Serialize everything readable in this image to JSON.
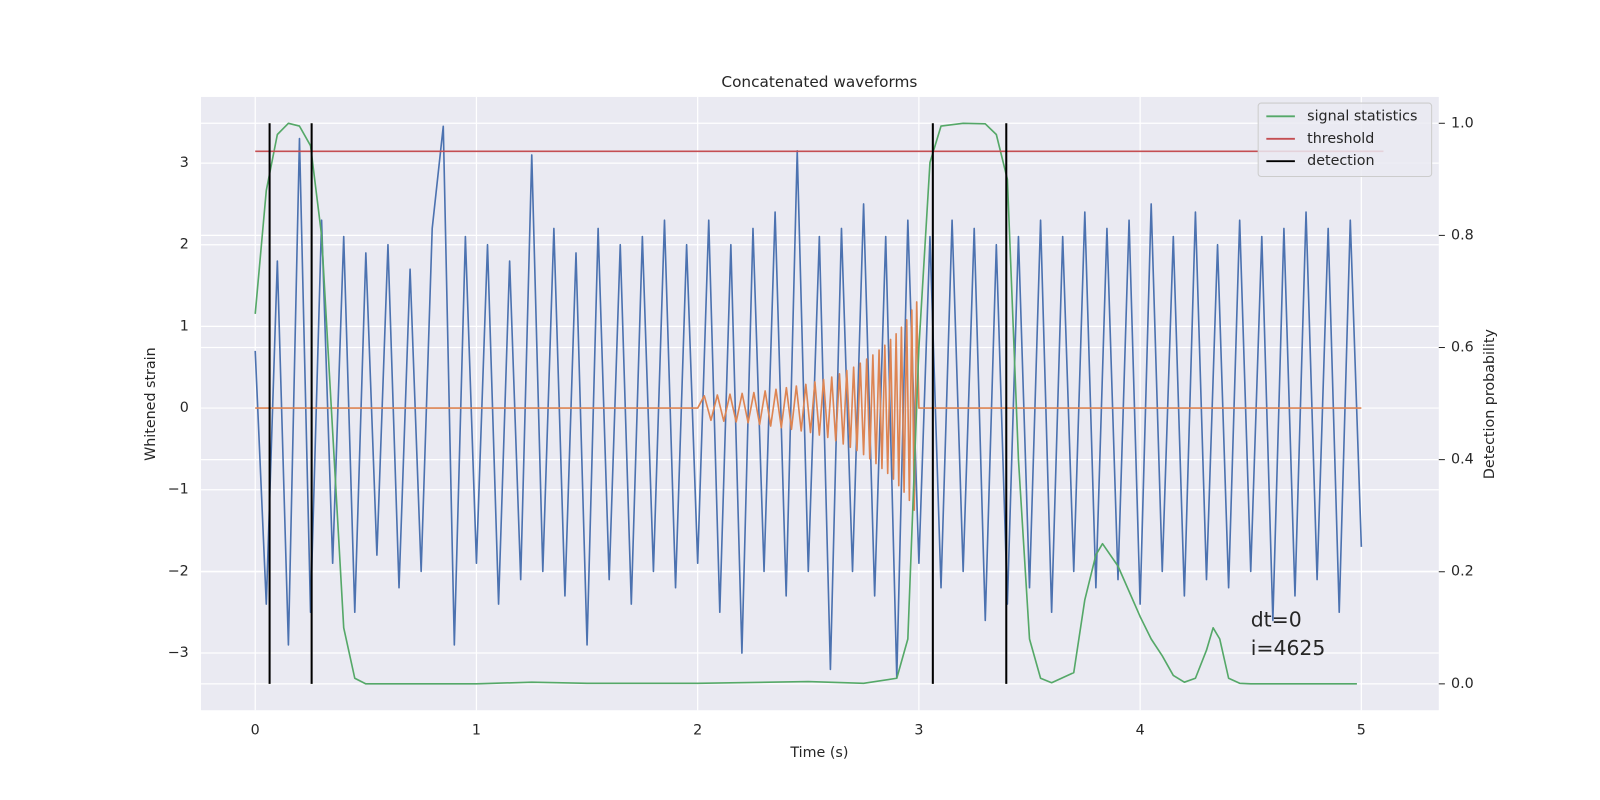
{
  "chart_data": {
    "type": "line",
    "title": "Concatenated waveforms",
    "xlabel": "Time (s)",
    "ylabel": "Whitened strain",
    "y2label": "Detection probability",
    "xlim": [
      -0.245,
      5.35
    ],
    "ylim": [
      -3.7,
      3.81
    ],
    "y2lim": [
      -0.047,
      1.047
    ],
    "xticks": [
      0,
      1,
      2,
      3,
      4,
      5
    ],
    "yticks": [
      {
        "value": -3,
        "label": "−3"
      },
      {
        "value": -2,
        "label": "−2"
      },
      {
        "value": -1,
        "label": "−1"
      },
      0,
      1,
      2,
      3
    ],
    "y2ticks": [
      {
        "value": 0,
        "label": "0.0"
      },
      0.2,
      0.4,
      0.6,
      0.8,
      {
        "value": 1,
        "label": "1.0"
      }
    ],
    "grid": true,
    "legend": "upper right",
    "series": [
      {
        "color": "#4c72b0",
        "x": [
          0,
          0.05,
          0.1,
          0.15,
          0.2,
          0.25,
          0.3,
          0.35,
          0.4,
          0.45,
          0.5,
          0.55,
          0.6,
          0.65,
          0.7,
          0.75,
          0.8,
          0.85,
          0.9,
          0.95,
          1,
          1.05,
          1.1,
          1.15,
          1.2,
          1.25,
          1.3,
          1.35,
          1.4,
          1.45,
          1.5,
          1.55,
          1.6,
          1.65,
          1.7,
          1.75,
          1.8,
          1.85,
          1.9,
          1.95,
          2,
          2.05,
          2.1,
          2.15,
          2.2,
          2.25,
          2.3,
          2.35,
          2.4,
          2.45,
          2.5,
          2.55,
          2.6,
          2.65,
          2.7,
          2.75,
          2.8,
          2.85,
          2.9,
          2.95,
          3,
          3.05,
          3.1,
          3.15,
          3.2,
          3.25,
          3.3,
          3.35,
          3.4,
          3.45,
          3.5,
          3.55,
          3.6,
          3.65,
          3.7,
          3.75,
          3.8,
          3.85,
          3.9,
          3.95,
          4,
          4.05,
          4.1,
          4.15,
          4.2,
          4.25,
          4.3,
          4.35,
          4.4,
          4.45,
          4.5,
          4.55,
          4.6,
          4.65,
          4.7,
          4.75,
          4.8,
          4.85,
          4.9,
          4.95,
          5
        ],
        "values": [
          0.7,
          -2.4,
          1.8,
          -2.9,
          3.3,
          -2.5,
          2.3,
          -1.9,
          2.1,
          -2.5,
          1.9,
          -1.8,
          2.0,
          -2.2,
          1.7,
          -2.0,
          2.2,
          3.45,
          -2.9,
          2.1,
          -1.9,
          2.0,
          -2.4,
          1.8,
          -2.1,
          3.1,
          -2.0,
          2.2,
          -2.3,
          1.9,
          -2.9,
          2.2,
          -2.1,
          2.0,
          -2.4,
          2.1,
          -2.0,
          2.3,
          -2.2,
          2.0,
          -1.9,
          2.3,
          -2.5,
          2.0,
          -3.0,
          2.2,
          -2.0,
          2.4,
          -2.3,
          3.15,
          -2.0,
          2.1,
          -3.2,
          2.2,
          -2.0,
          2.5,
          -2.3,
          2.1,
          -3.3,
          2.3,
          -1.9,
          2.1,
          -2.2,
          2.3,
          -2.0,
          2.2,
          -2.6,
          2.0,
          -2.4,
          2.1,
          -2.2,
          2.3,
          -2.5,
          2.1,
          -2.0,
          2.4,
          -2.2,
          2.2,
          -2.1,
          2.3,
          -2.4,
          2.5,
          -2.0,
          2.1,
          -2.3,
          2.4,
          -2.1,
          2.0,
          -2.2,
          2.3,
          -2.0,
          2.1,
          -2.6,
          2.2,
          -2.3,
          2.4,
          -2.1,
          2.2,
          -2.5,
          2.3,
          -1.7
        ]
      },
      {
        "color": "#dd8452",
        "x": [
          0,
          2.0,
          2.03,
          2.06,
          2.089,
          2.118,
          2.146,
          2.174,
          2.201,
          2.228,
          2.254,
          2.28,
          2.305,
          2.33,
          2.354,
          2.378,
          2.401,
          2.424,
          2.446,
          2.468,
          2.489,
          2.51,
          2.53,
          2.55,
          2.569,
          2.588,
          2.606,
          2.624,
          2.641,
          2.658,
          2.674,
          2.69,
          2.705,
          2.72,
          2.735,
          2.75,
          2.764,
          2.778,
          2.792,
          2.806,
          2.82,
          2.833,
          2.846,
          2.859,
          2.872,
          2.885,
          2.897,
          2.909,
          2.921,
          2.933,
          2.945,
          2.957,
          2.968,
          2.979,
          2.99,
          3.0,
          5
        ],
        "values": [
          0,
          0,
          0.15,
          -0.15,
          0.16,
          -0.16,
          0.17,
          -0.17,
          0.18,
          -0.18,
          0.19,
          -0.2,
          0.21,
          -0.22,
          0.23,
          -0.24,
          0.25,
          -0.26,
          0.27,
          -0.28,
          0.29,
          -0.3,
          0.32,
          -0.33,
          0.35,
          -0.36,
          0.38,
          -0.4,
          0.42,
          -0.44,
          0.46,
          -0.48,
          0.5,
          -0.52,
          0.55,
          -0.57,
          0.6,
          -0.62,
          0.65,
          -0.68,
          0.71,
          -0.74,
          0.77,
          -0.8,
          0.84,
          -0.87,
          0.91,
          -0.95,
          0.99,
          -1.03,
          1.08,
          -1.13,
          1.2,
          -1.25,
          1.3,
          0,
          0
        ]
      },
      {
        "name": "signal statistics",
        "color": "#55a868",
        "axis": "y2",
        "x": [
          0,
          0.05,
          0.1,
          0.15,
          0.2,
          0.25,
          0.3,
          0.35,
          0.4,
          0.45,
          0.5,
          1.0,
          1.25,
          1.5,
          2.0,
          2.5,
          2.75,
          2.9,
          2.95,
          3.0,
          3.05,
          3.1,
          3.2,
          3.3,
          3.35,
          3.4,
          3.45,
          3.5,
          3.55,
          3.6,
          3.7,
          3.75,
          3.8,
          3.83,
          3.9,
          4.0,
          4.05,
          4.1,
          4.15,
          4.2,
          4.25,
          4.3,
          4.33,
          4.36,
          4.4,
          4.45,
          4.5,
          4.98
        ],
        "values": [
          0.66,
          0.88,
          0.98,
          1.0,
          0.995,
          0.96,
          0.8,
          0.45,
          0.1,
          0.01,
          0.0,
          0.0,
          0.003,
          0.001,
          0.001,
          0.004,
          0.001,
          0.01,
          0.08,
          0.6,
          0.93,
          0.995,
          1.0,
          0.999,
          0.98,
          0.9,
          0.4,
          0.08,
          0.01,
          0.002,
          0.02,
          0.15,
          0.23,
          0.25,
          0.21,
          0.12,
          0.08,
          0.05,
          0.015,
          0.003,
          0.01,
          0.06,
          0.1,
          0.08,
          0.01,
          0.001,
          0.0,
          0.0
        ]
      },
      {
        "name": "threshold",
        "color": "#c44e52",
        "axis": "y2",
        "x": [
          0,
          5.1
        ],
        "values": [
          0.95,
          0.95
        ]
      },
      {
        "name": "detection",
        "color": "#000000",
        "axis": "y2",
        "mark": "vline",
        "x": [
          0.065,
          0.255,
          3.063,
          3.395
        ],
        "ymin": 0,
        "ymax": 1
      }
    ],
    "annotations": [
      "dt=0",
      "i=4625"
    ]
  }
}
